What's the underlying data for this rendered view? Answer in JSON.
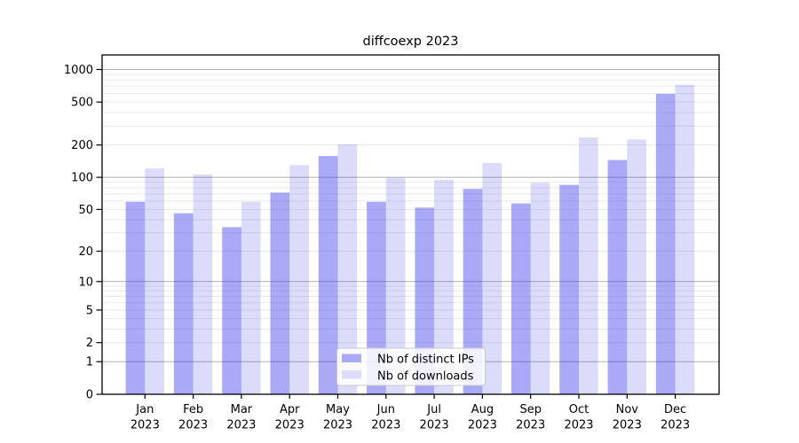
{
  "title": "diffcoexp 2023",
  "colors": {
    "bar_ips_hex": "#a9a9f5",
    "bar_downloads_hex": "#dbdbfa",
    "bar_ips_rgba": "rgba(50,50,231,0.42)",
    "bar_downloads_rgba": "rgba(55,55,227,0.18)",
    "grid_major": "#b0b0b0",
    "grid_minor": "#eaeaea",
    "axis_frame": "#000000",
    "legend_border": "#c9c9c9"
  },
  "chart_data": {
    "type": "bar",
    "title": "diffcoexp 2023",
    "categories": [
      "Jan",
      "Feb",
      "Mar",
      "Apr",
      "May",
      "Jun",
      "Jul",
      "Aug",
      "Sep",
      "Oct",
      "Nov",
      "Dec"
    ],
    "year_label": "2023",
    "series": [
      {
        "name": "Nb of distinct IPs",
        "values": [
          59,
          46,
          34,
          72,
          158,
          59,
          52,
          78,
          57,
          85,
          145,
          595
        ]
      },
      {
        "name": "Nb of downloads",
        "values": [
          121,
          106,
          59,
          130,
          203,
          99,
          95,
          136,
          89,
          235,
          225,
          722
        ]
      }
    ],
    "yticks": [
      0,
      1,
      2,
      5,
      10,
      20,
      50,
      100,
      200,
      500,
      1000
    ],
    "ytick_labels": [
      "0",
      "1",
      "2",
      "5",
      "10",
      "20",
      "50",
      "100",
      "200",
      "500",
      "1000"
    ],
    "ylim": [
      0,
      1364
    ],
    "scale": "log1p",
    "grid": true,
    "legend_position": "lower-center",
    "xlabel": "",
    "ylabel": ""
  }
}
